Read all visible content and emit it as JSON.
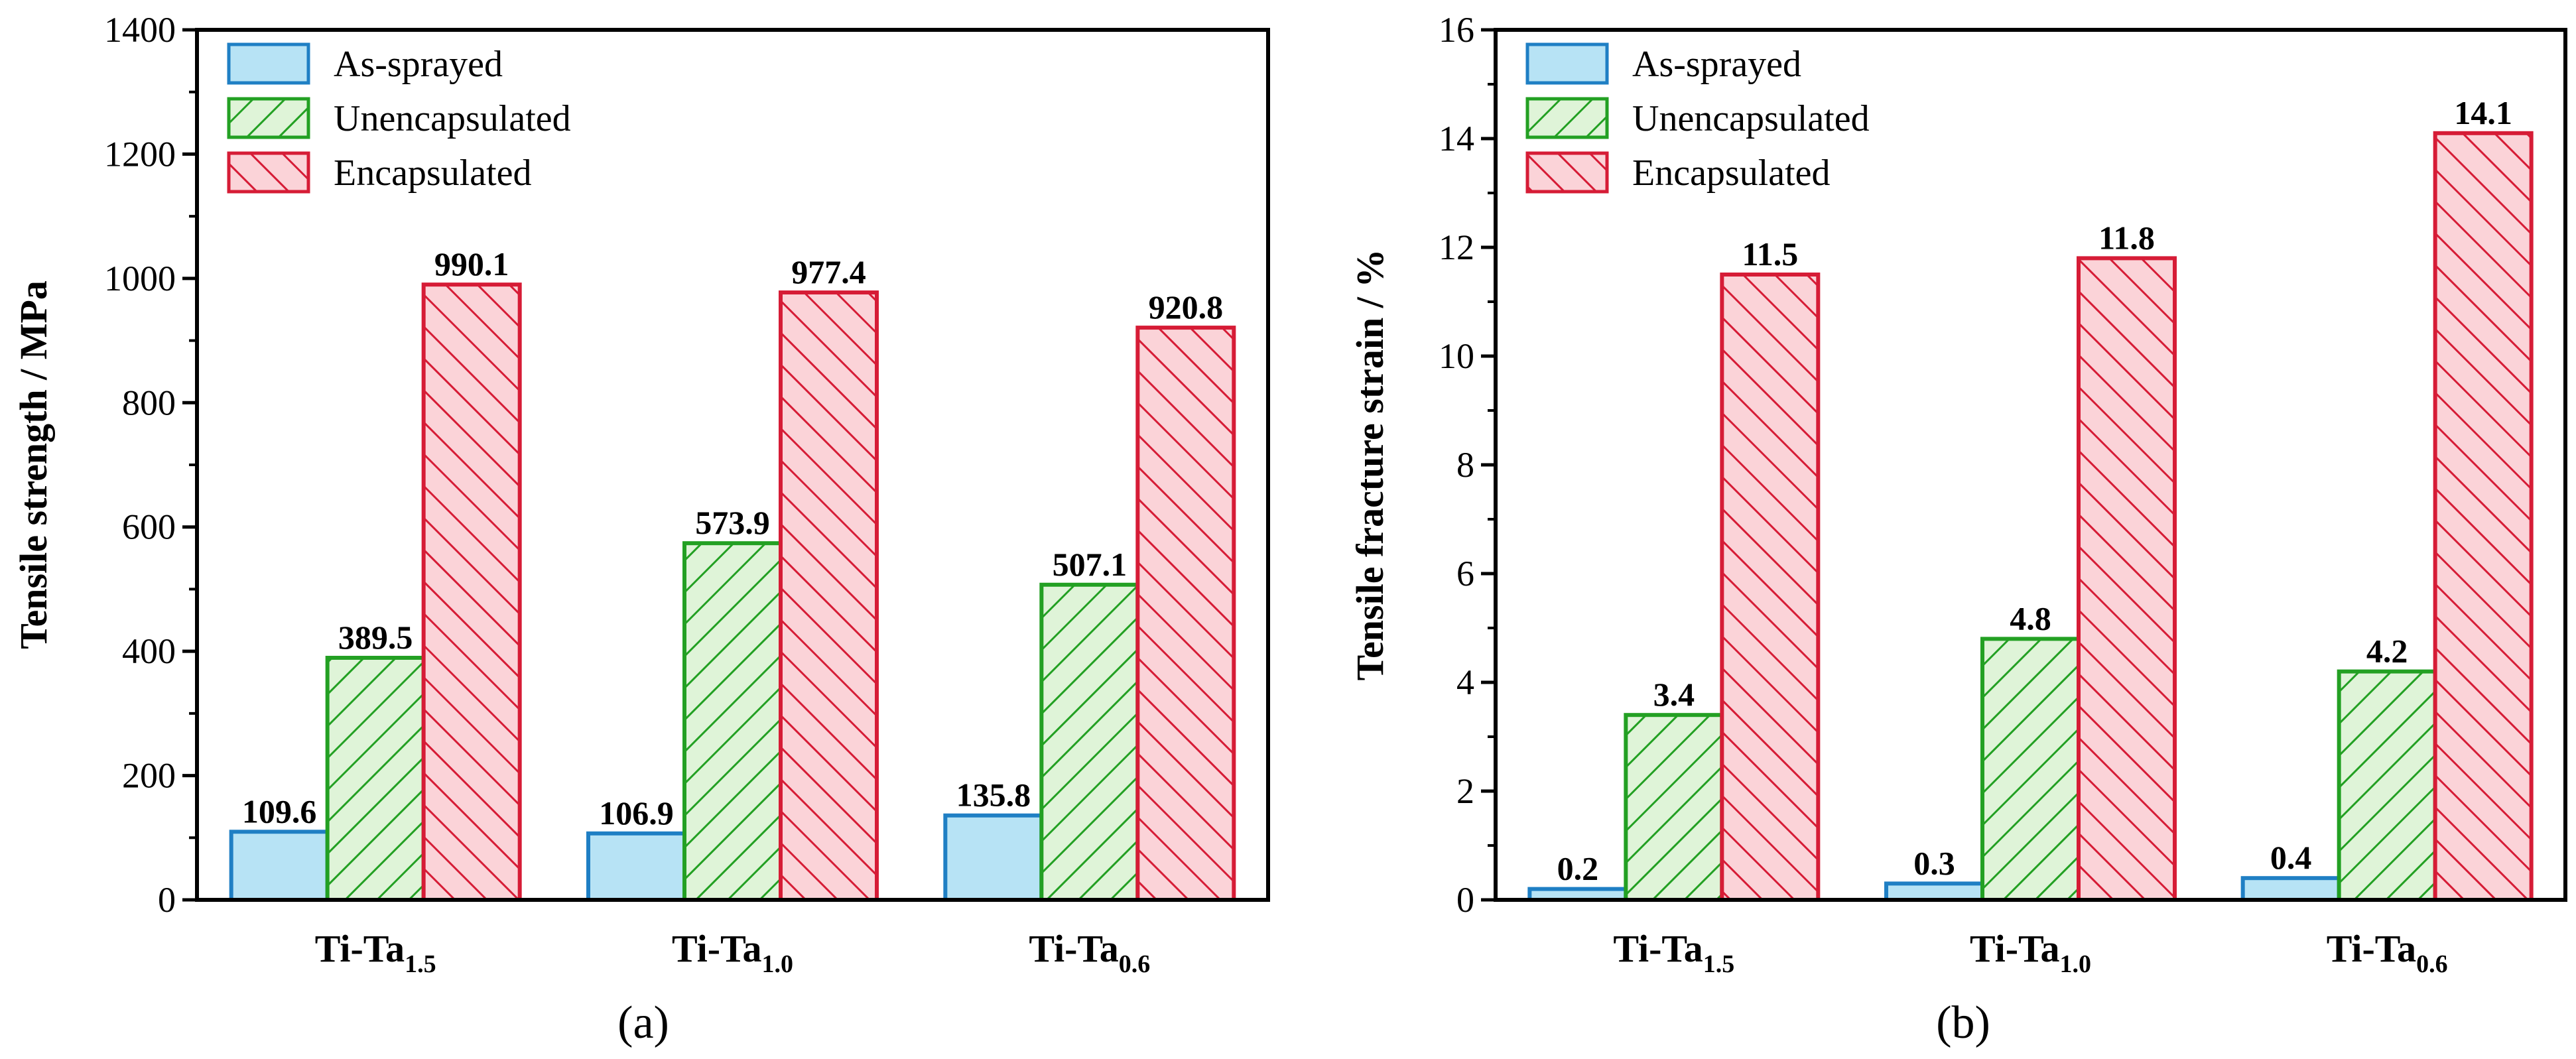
{
  "chart_data": [
    {
      "type": "bar",
      "panel_label": "(a)",
      "ylabel": "Tensile strength / MPa",
      "xlabel": "",
      "ylim": [
        0,
        1400
      ],
      "yticks": [
        0,
        200,
        400,
        600,
        800,
        1000,
        1200,
        1400
      ],
      "yticks_text": [
        "0",
        "200",
        "400",
        "600",
        "800",
        "1000",
        "1200",
        "1400"
      ],
      "categories": [
        {
          "base": "Ti-Ta",
          "sub": "1.5"
        },
        {
          "base": "Ti-Ta",
          "sub": "1.0"
        },
        {
          "base": "Ti-Ta",
          "sub": "0.6"
        }
      ],
      "series": [
        {
          "name": "As-sprayed",
          "values": [
            109.6,
            106.9,
            135.8
          ],
          "labels": [
            "109.6",
            "106.9",
            "135.8"
          ],
          "fill": "#b7e3f5",
          "stroke": "#1f7fc4",
          "pattern": "none"
        },
        {
          "name": "Unencapsulated",
          "values": [
            389.5,
            573.9,
            507.1
          ],
          "labels": [
            "389.5",
            "573.9",
            "507.1"
          ],
          "fill": "#dff4d8",
          "stroke": "#23a023",
          "pattern": "forward-hatch"
        },
        {
          "name": "Encapsulated",
          "values": [
            990.1,
            977.4,
            920.8
          ],
          "labels": [
            "990.1",
            "977.4",
            "920.8"
          ],
          "fill": "#fbd3d8",
          "stroke": "#d61c36",
          "pattern": "back-hatch"
        }
      ],
      "legend_position": "top-left"
    },
    {
      "type": "bar",
      "panel_label": "(b)",
      "ylabel": "Tensile fracture strain / %",
      "xlabel": "",
      "ylim": [
        0,
        16
      ],
      "yticks": [
        0,
        2,
        4,
        6,
        8,
        10,
        12,
        14,
        16
      ],
      "yticks_text": [
        "0",
        "2",
        "4",
        "6",
        "8",
        "10",
        "12",
        "14",
        "16"
      ],
      "categories": [
        {
          "base": "Ti-Ta",
          "sub": "1.5"
        },
        {
          "base": "Ti-Ta",
          "sub": "1.0"
        },
        {
          "base": "Ti-Ta",
          "sub": "0.6"
        }
      ],
      "series": [
        {
          "name": "As-sprayed",
          "values": [
            0.2,
            0.3,
            0.4
          ],
          "labels": [
            "0.2",
            "0.3",
            "0.4"
          ],
          "fill": "#b7e3f5",
          "stroke": "#1f7fc4",
          "pattern": "none"
        },
        {
          "name": "Unencapsulated",
          "values": [
            3.4,
            4.8,
            4.2
          ],
          "labels": [
            "3.4",
            "4.8",
            "4.2"
          ],
          "fill": "#dff4d8",
          "stroke": "#23a023",
          "pattern": "forward-hatch"
        },
        {
          "name": "Encapsulated",
          "values": [
            11.5,
            11.8,
            14.1
          ],
          "labels": [
            "11.5",
            "11.8",
            "14.1"
          ],
          "fill": "#fbd3d8",
          "stroke": "#d61c36",
          "pattern": "back-hatch"
        }
      ],
      "legend_position": "top-left"
    }
  ]
}
